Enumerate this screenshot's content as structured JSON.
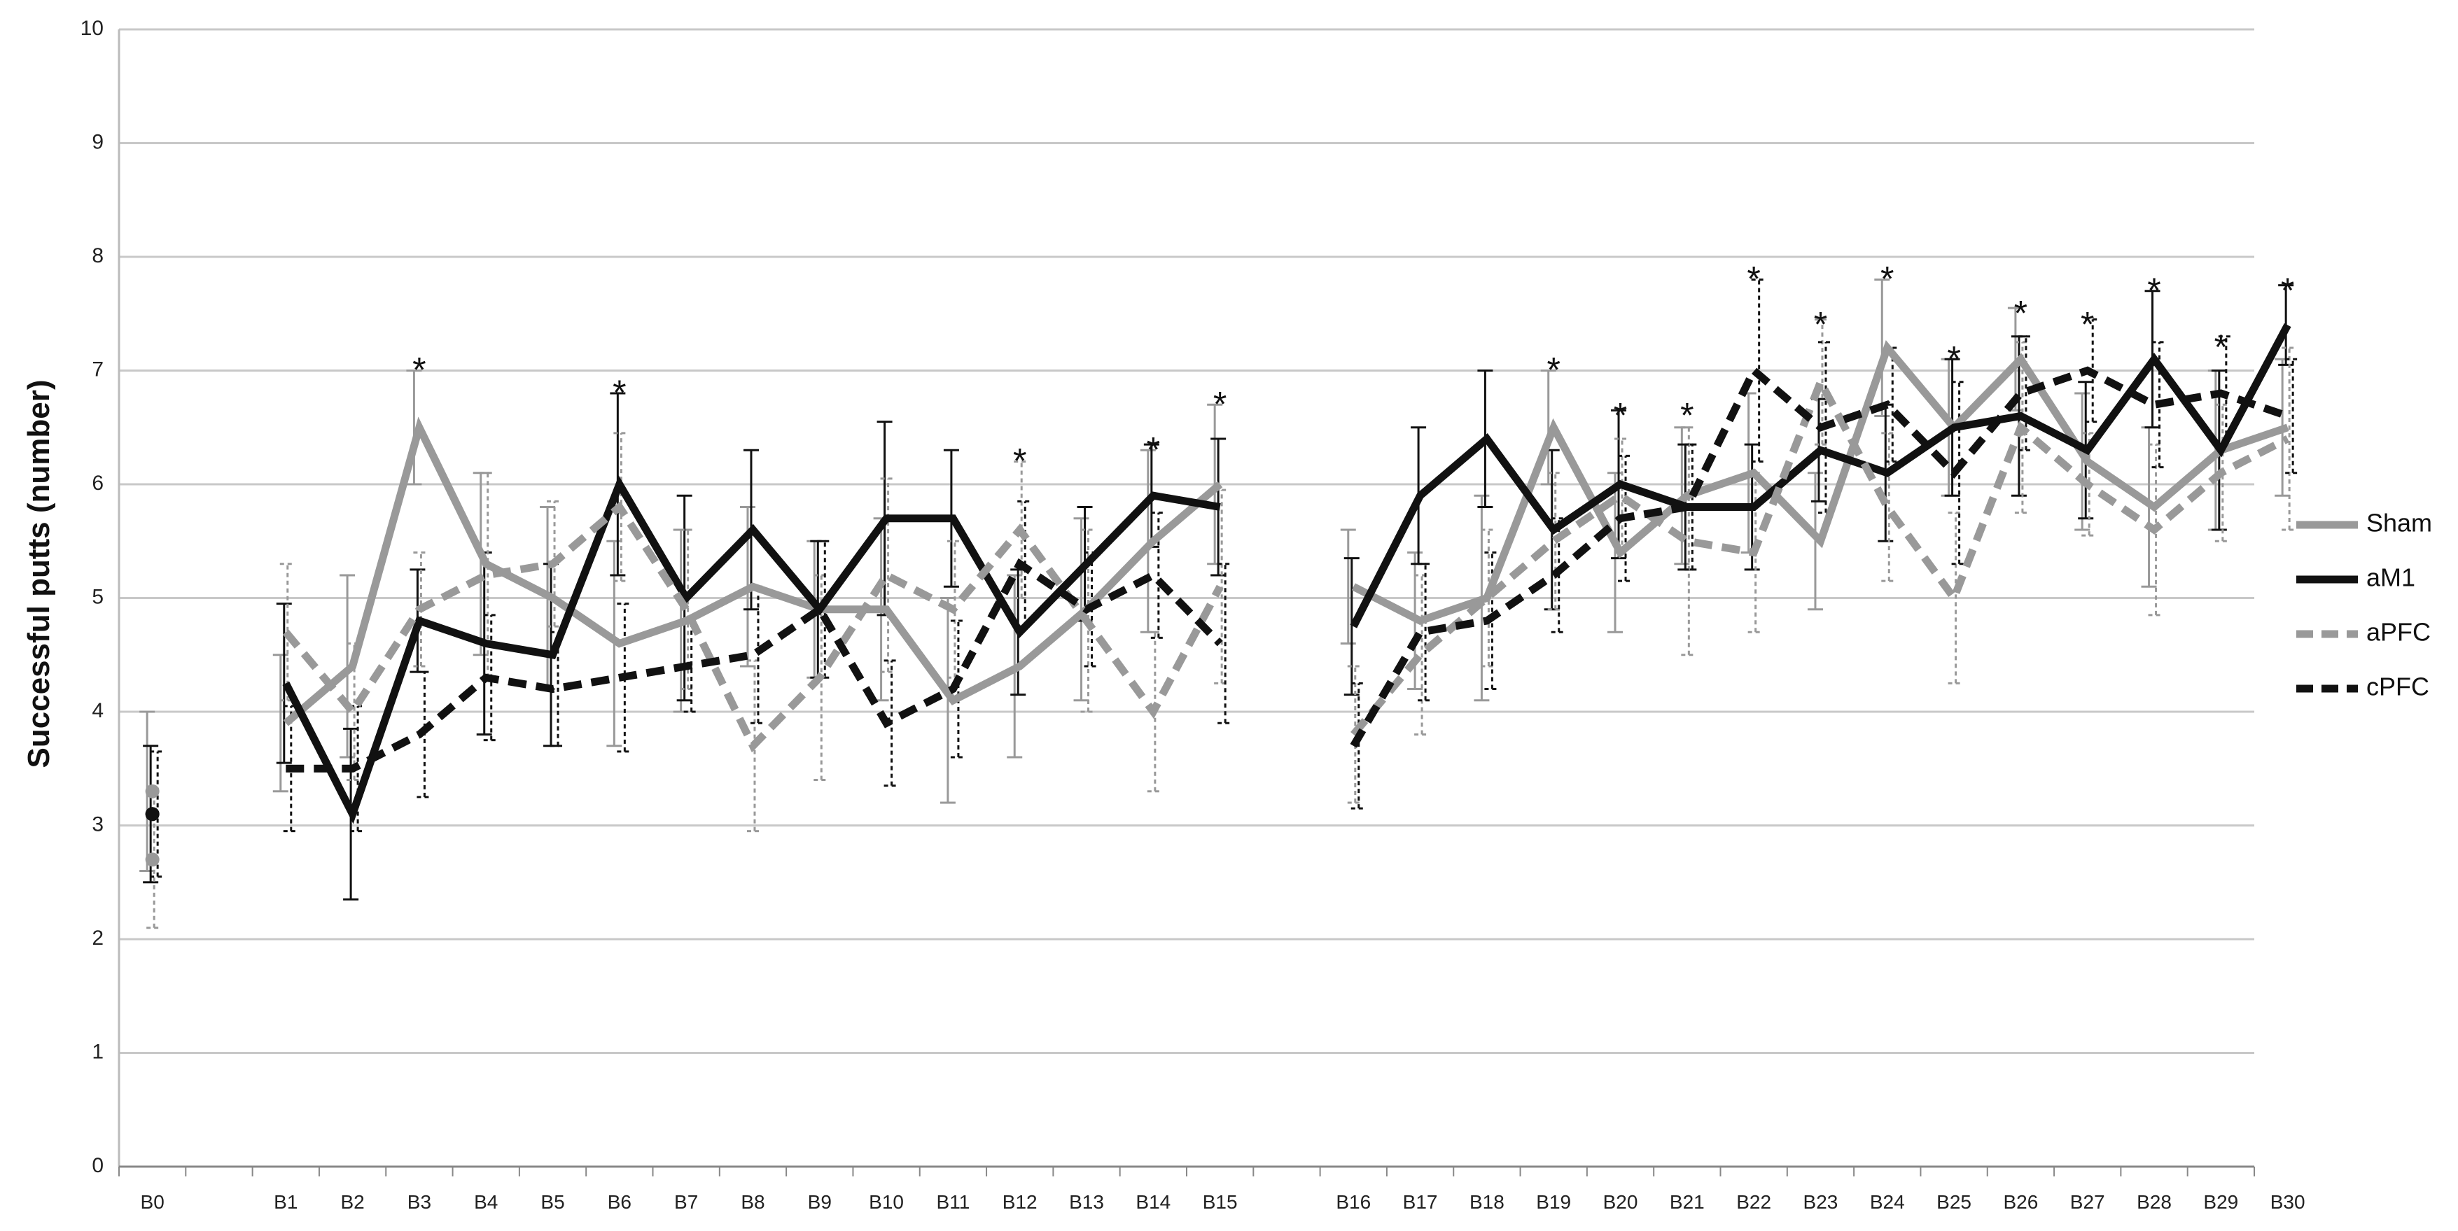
{
  "chart_data": {
    "type": "line",
    "title": "",
    "xlabel": "",
    "ylabel": "Successful putts (number)",
    "ylim": [
      0,
      10
    ],
    "yticks": [
      0,
      1,
      2,
      3,
      4,
      5,
      6,
      7,
      8,
      9,
      10
    ],
    "grid": true,
    "legend_position": "right",
    "categories": [
      "B0",
      "B1",
      "B2",
      "B3",
      "B4",
      "B5",
      "B6",
      "B7",
      "B8",
      "B9",
      "B10",
      "B11",
      "B12",
      "B13",
      "B14",
      "B15",
      "B16",
      "B17",
      "B18",
      "B19",
      "B20",
      "B21",
      "B22",
      "B23",
      "B24",
      "B25",
      "B26",
      "B27",
      "B28",
      "B29",
      "B30"
    ],
    "segments": [
      [
        1,
        15
      ],
      [
        16,
        30
      ]
    ],
    "series": [
      {
        "name": "Sham",
        "color": "#999999",
        "dash": "solid",
        "values": [
          3.3,
          3.9,
          4.4,
          6.5,
          5.3,
          5.0,
          4.6,
          4.8,
          5.1,
          4.9,
          4.9,
          4.1,
          4.4,
          4.9,
          5.5,
          6.0,
          5.1,
          4.8,
          5.0,
          6.5,
          5.4,
          5.9,
          6.1,
          5.5,
          7.2,
          6.5,
          7.1,
          6.2,
          5.8,
          6.3,
          6.5
        ],
        "errors": [
          0.7,
          0.6,
          0.8,
          0.5,
          0.8,
          0.8,
          0.9,
          0.8,
          0.7,
          0.6,
          0.8,
          0.9,
          0.8,
          0.8,
          0.8,
          0.7,
          0.5,
          0.6,
          0.9,
          0.5,
          0.7,
          0.6,
          0.7,
          0.6,
          0.6,
          0.6,
          0.45,
          0.6,
          0.7,
          0.7,
          0.6
        ]
      },
      {
        "name": "aM1",
        "color": "#111111",
        "dash": "solid",
        "values": [
          3.1,
          4.25,
          3.1,
          4.8,
          4.6,
          4.5,
          6.0,
          5.0,
          5.6,
          4.9,
          5.7,
          5.7,
          4.7,
          5.3,
          5.9,
          5.8,
          4.75,
          5.9,
          6.4,
          5.6,
          6.0,
          5.8,
          5.8,
          6.3,
          6.1,
          6.5,
          6.6,
          6.3,
          7.1,
          6.3,
          7.4
        ],
        "errors": [
          0.6,
          0.7,
          0.75,
          0.45,
          0.8,
          0.8,
          0.8,
          0.9,
          0.7,
          0.6,
          0.85,
          0.6,
          0.55,
          0.5,
          0.45,
          0.6,
          0.6,
          0.6,
          0.6,
          0.7,
          0.65,
          0.55,
          0.55,
          0.45,
          0.6,
          0.6,
          0.7,
          0.6,
          0.6,
          0.7,
          0.35
        ]
      },
      {
        "name": "aPFC",
        "color": "#999999",
        "dash": "dashed",
        "values": [
          2.7,
          4.7,
          4.0,
          4.9,
          5.2,
          5.3,
          5.8,
          4.9,
          3.7,
          4.3,
          5.2,
          4.9,
          5.6,
          4.8,
          4.0,
          5.1,
          3.8,
          4.5,
          5.0,
          5.5,
          5.9,
          5.5,
          5.4,
          6.9,
          5.8,
          5.0,
          6.5,
          6.0,
          5.6,
          6.1,
          6.4
        ],
        "errors": [
          0.6,
          0.6,
          0.6,
          0.5,
          0.9,
          0.55,
          0.65,
          0.7,
          0.75,
          0.9,
          0.85,
          0.6,
          0.6,
          0.8,
          0.7,
          0.85,
          0.6,
          0.7,
          0.6,
          0.6,
          0.5,
          1.0,
          0.7,
          0.55,
          0.65,
          0.75,
          0.75,
          0.45,
          0.75,
          0.6,
          0.8
        ]
      },
      {
        "name": "cPFC",
        "color": "#111111",
        "dash": "dashed",
        "values": [
          3.1,
          3.5,
          3.5,
          3.8,
          4.3,
          4.2,
          4.3,
          4.4,
          4.5,
          4.9,
          3.9,
          4.2,
          5.3,
          4.9,
          5.2,
          4.6,
          3.7,
          4.7,
          4.8,
          5.2,
          5.7,
          5.8,
          7.0,
          6.5,
          6.7,
          6.1,
          6.8,
          7.0,
          6.7,
          6.8,
          6.6
        ],
        "errors": [
          0.55,
          0.55,
          0.55,
          0.55,
          0.55,
          0.5,
          0.65,
          0.4,
          0.6,
          0.6,
          0.55,
          0.6,
          0.55,
          0.5,
          0.55,
          0.7,
          0.55,
          0.6,
          0.6,
          0.5,
          0.55,
          0.55,
          0.8,
          0.75,
          0.5,
          0.8,
          0.5,
          0.45,
          0.55,
          0.5,
          0.5
        ]
      }
    ],
    "annotations": [
      {
        "text": "*",
        "x": "B3",
        "y": 7.0
      },
      {
        "text": "*",
        "x": "B6",
        "y": 6.8
      },
      {
        "text": "*",
        "x": "B12",
        "y": 6.2
      },
      {
        "text": "*",
        "x": "B14",
        "y": 6.3
      },
      {
        "text": "*",
        "x": "B15",
        "y": 6.7
      },
      {
        "text": "*",
        "x": "B19",
        "y": 7.0
      },
      {
        "text": "*",
        "x": "B20",
        "y": 6.6
      },
      {
        "text": "*",
        "x": "B21",
        "y": 6.6
      },
      {
        "text": "*",
        "x": "B22",
        "y": 7.8
      },
      {
        "text": "*",
        "x": "B23",
        "y": 7.4
      },
      {
        "text": "*",
        "x": "B24",
        "y": 7.8
      },
      {
        "text": "*",
        "x": "B25",
        "y": 7.1
      },
      {
        "text": "*",
        "x": "B26",
        "y": 7.5
      },
      {
        "text": "*",
        "x": "B27",
        "y": 7.4
      },
      {
        "text": "*",
        "x": "B28",
        "y": 7.7
      },
      {
        "text": "*",
        "x": "B29",
        "y": 7.2
      },
      {
        "text": "*",
        "x": "B30",
        "y": 7.7
      }
    ]
  }
}
